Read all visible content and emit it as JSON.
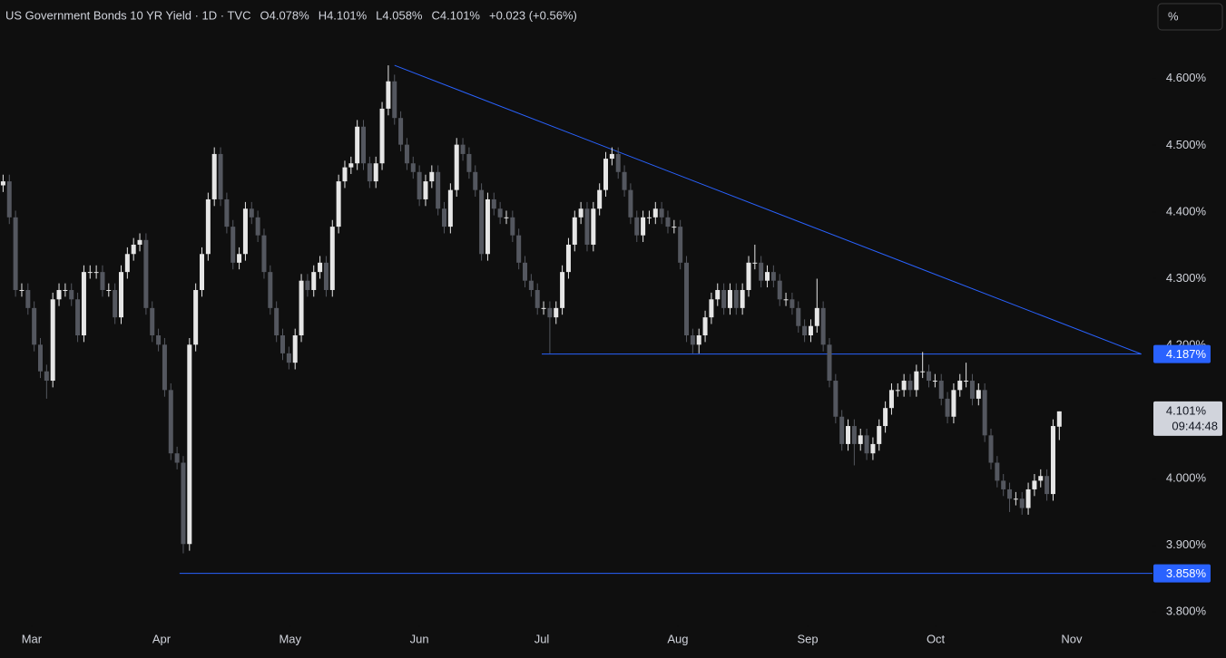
{
  "chart_data": {
    "type": "candlestick",
    "title": "US Government Bonds 10 YR Yield · 1D · TVC",
    "header_values": [
      "O4.078%",
      "H4.101%",
      "L4.058%",
      "C4.101%",
      "+0.023 (+0.56%)"
    ],
    "unit_button": "%",
    "up_color": "#e6e6e6",
    "down_color": "#54575f",
    "drawing_color": "#2962ff",
    "background": "#0f0f0f",
    "open": [
      4.44,
      4.446,
      4.392,
      4.283,
      4.283,
      4.256,
      4.201,
      4.161,
      4.147,
      4.269,
      4.283,
      4.283,
      4.269,
      4.215,
      4.31,
      4.31,
      4.31,
      4.283,
      4.283,
      4.242,
      4.31,
      4.337,
      4.351,
      4.358,
      4.256,
      4.215,
      4.201,
      4.133,
      4.038,
      4.024,
      3.902,
      4.201,
      4.283,
      4.337,
      4.419,
      4.487,
      4.419,
      4.378,
      4.324,
      4.337,
      4.405,
      4.392,
      4.365,
      4.31,
      4.256,
      4.215,
      4.188,
      4.174,
      4.215,
      4.297,
      4.283,
      4.31,
      4.324,
      4.283,
      4.378,
      4.446,
      4.467,
      4.473,
      4.528,
      4.473,
      4.446,
      4.473,
      4.555,
      4.596,
      4.541,
      4.501,
      4.473,
      4.46,
      4.419,
      4.446,
      4.46,
      4.405,
      4.378,
      4.433,
      4.501,
      4.487,
      4.46,
      4.433,
      4.337,
      4.419,
      4.405,
      4.392,
      4.392,
      4.365,
      4.324,
      4.297,
      4.283,
      4.256,
      4.256,
      4.242,
      4.256,
      4.31,
      4.351,
      4.392,
      4.405,
      4.351,
      4.405,
      4.433,
      4.48,
      4.487,
      4.46,
      4.433,
      4.392,
      4.365,
      4.392,
      4.392,
      4.405,
      4.392,
      4.378,
      4.378,
      4.324,
      4.215,
      4.201,
      4.215,
      4.242,
      4.269,
      4.283,
      4.256,
      4.283,
      4.256,
      4.283,
      4.324,
      4.324,
      4.297,
      4.31,
      4.297,
      4.269,
      4.269,
      4.256,
      4.229,
      4.215,
      4.229,
      4.256,
      4.201,
      4.147,
      4.093,
      4.052,
      4.079,
      4.052,
      4.065,
      4.038,
      4.052,
      4.079,
      4.106,
      4.133,
      4.133,
      4.147,
      4.133,
      4.161,
      4.161,
      4.147,
      4.147,
      4.12,
      4.093,
      4.133,
      4.147,
      4.147,
      4.12,
      4.133,
      4.065,
      4.024,
      3.997,
      3.984,
      3.97,
      3.97,
      3.956,
      3.984,
      3.997,
      4.004,
      3.977,
      4.078
    ],
    "high": [
      4.456,
      4.456,
      4.402,
      4.293,
      4.293,
      4.266,
      4.211,
      4.171,
      4.279,
      4.293,
      4.293,
      4.293,
      4.279,
      4.32,
      4.32,
      4.32,
      4.32,
      4.293,
      4.293,
      4.32,
      4.347,
      4.361,
      4.368,
      4.368,
      4.266,
      4.225,
      4.211,
      4.143,
      4.048,
      4.034,
      4.211,
      4.293,
      4.347,
      4.429,
      4.497,
      4.497,
      4.429,
      4.388,
      4.347,
      4.415,
      4.415,
      4.402,
      4.375,
      4.32,
      4.266,
      4.225,
      4.198,
      4.225,
      4.307,
      4.307,
      4.32,
      4.334,
      4.334,
      4.388,
      4.456,
      4.477,
      4.483,
      4.538,
      4.538,
      4.483,
      4.483,
      4.565,
      4.62,
      4.606,
      4.551,
      4.511,
      4.483,
      4.47,
      4.456,
      4.47,
      4.47,
      4.415,
      4.443,
      4.511,
      4.511,
      4.497,
      4.47,
      4.443,
      4.429,
      4.429,
      4.415,
      4.402,
      4.402,
      4.375,
      4.334,
      4.307,
      4.293,
      4.266,
      4.266,
      4.266,
      4.32,
      4.361,
      4.402,
      4.415,
      4.415,
      4.415,
      4.443,
      4.49,
      4.497,
      4.497,
      4.47,
      4.443,
      4.402,
      4.402,
      4.402,
      4.415,
      4.415,
      4.402,
      4.388,
      4.388,
      4.334,
      4.225,
      4.225,
      4.252,
      4.279,
      4.293,
      4.293,
      4.293,
      4.293,
      4.293,
      4.334,
      4.351,
      4.334,
      4.32,
      4.32,
      4.307,
      4.279,
      4.279,
      4.266,
      4.239,
      4.239,
      4.3,
      4.266,
      4.211,
      4.157,
      4.103,
      4.089,
      4.089,
      4.075,
      4.075,
      4.062,
      4.089,
      4.116,
      4.143,
      4.143,
      4.157,
      4.157,
      4.171,
      4.19,
      4.171,
      4.157,
      4.157,
      4.13,
      4.143,
      4.157,
      4.174,
      4.157,
      4.143,
      4.143,
      4.075,
      4.034,
      4.007,
      3.994,
      3.98,
      3.98,
      3.994,
      4.007,
      4.014,
      4.014,
      4.089,
      4.101
    ],
    "low": [
      4.43,
      4.382,
      4.273,
      4.273,
      4.246,
      4.191,
      4.151,
      4.12,
      4.137,
      4.259,
      4.273,
      4.259,
      4.205,
      4.205,
      4.3,
      4.3,
      4.273,
      4.273,
      4.232,
      4.232,
      4.3,
      4.327,
      4.341,
      4.246,
      4.205,
      4.191,
      4.123,
      4.028,
      4.014,
      3.888,
      3.892,
      4.191,
      4.273,
      4.327,
      4.409,
      4.409,
      4.368,
      4.314,
      4.314,
      4.327,
      4.382,
      4.355,
      4.3,
      4.246,
      4.205,
      4.178,
      4.164,
      4.164,
      4.205,
      4.273,
      4.273,
      4.3,
      4.273,
      4.273,
      4.368,
      4.436,
      4.457,
      4.463,
      4.463,
      4.436,
      4.436,
      4.463,
      4.545,
      4.531,
      4.491,
      4.463,
      4.45,
      4.409,
      4.409,
      4.436,
      4.395,
      4.368,
      4.368,
      4.423,
      4.477,
      4.45,
      4.423,
      4.327,
      4.327,
      4.395,
      4.382,
      4.382,
      4.355,
      4.314,
      4.287,
      4.273,
      4.246,
      4.246,
      4.188,
      4.232,
      4.246,
      4.3,
      4.341,
      4.382,
      4.341,
      4.341,
      4.395,
      4.423,
      4.47,
      4.45,
      4.423,
      4.382,
      4.355,
      4.355,
      4.382,
      4.382,
      4.382,
      4.368,
      4.368,
      4.314,
      4.205,
      4.188,
      4.188,
      4.205,
      4.232,
      4.259,
      4.246,
      4.246,
      4.246,
      4.246,
      4.273,
      4.314,
      4.287,
      4.287,
      4.287,
      4.259,
      4.259,
      4.246,
      4.219,
      4.205,
      4.205,
      4.219,
      4.191,
      4.137,
      4.083,
      4.042,
      4.042,
      4.02,
      4.042,
      4.028,
      4.028,
      4.042,
      4.069,
      4.096,
      4.123,
      4.123,
      4.123,
      4.123,
      4.151,
      4.137,
      4.137,
      4.11,
      4.083,
      4.083,
      4.123,
      4.137,
      4.11,
      4.11,
      4.055,
      4.014,
      3.987,
      3.974,
      3.95,
      3.96,
      3.946,
      3.946,
      3.974,
      3.987,
      3.967,
      3.967,
      4.058
    ],
    "close": [
      4.446,
      4.392,
      4.283,
      4.283,
      4.256,
      4.201,
      4.161,
      4.147,
      4.269,
      4.283,
      4.283,
      4.269,
      4.215,
      4.31,
      4.31,
      4.31,
      4.283,
      4.283,
      4.242,
      4.31,
      4.337,
      4.351,
      4.358,
      4.256,
      4.215,
      4.201,
      4.133,
      4.038,
      4.024,
      3.902,
      4.201,
      4.283,
      4.337,
      4.419,
      4.487,
      4.419,
      4.378,
      4.324,
      4.337,
      4.405,
      4.392,
      4.365,
      4.31,
      4.256,
      4.215,
      4.188,
      4.174,
      4.215,
      4.297,
      4.283,
      4.31,
      4.324,
      4.283,
      4.378,
      4.446,
      4.467,
      4.473,
      4.528,
      4.473,
      4.446,
      4.473,
      4.555,
      4.596,
      4.541,
      4.501,
      4.473,
      4.46,
      4.419,
      4.446,
      4.46,
      4.405,
      4.378,
      4.433,
      4.501,
      4.487,
      4.46,
      4.433,
      4.337,
      4.419,
      4.405,
      4.392,
      4.392,
      4.365,
      4.324,
      4.297,
      4.283,
      4.256,
      4.256,
      4.242,
      4.256,
      4.31,
      4.351,
      4.392,
      4.405,
      4.351,
      4.405,
      4.433,
      4.48,
      4.487,
      4.46,
      4.433,
      4.392,
      4.365,
      4.392,
      4.392,
      4.405,
      4.392,
      4.378,
      4.378,
      4.324,
      4.215,
      4.201,
      4.215,
      4.242,
      4.269,
      4.283,
      4.256,
      4.283,
      4.256,
      4.283,
      4.324,
      4.324,
      4.297,
      4.31,
      4.297,
      4.269,
      4.269,
      4.256,
      4.229,
      4.215,
      4.229,
      4.256,
      4.201,
      4.147,
      4.093,
      4.052,
      4.079,
      4.052,
      4.065,
      4.038,
      4.052,
      4.079,
      4.106,
      4.133,
      4.133,
      4.147,
      4.133,
      4.161,
      4.161,
      4.147,
      4.147,
      4.12,
      4.093,
      4.133,
      4.147,
      4.147,
      4.12,
      4.133,
      4.065,
      4.024,
      3.997,
      3.984,
      3.97,
      3.97,
      3.956,
      3.984,
      3.997,
      4.004,
      3.977,
      4.079,
      4.101
    ],
    "xlim": [
      -0.5,
      185
    ],
    "xticks": [
      {
        "value": 4.6,
        "label": "Mar"
      },
      {
        "value": 25.5,
        "label": "Apr"
      },
      {
        "value": 46.2,
        "label": "May"
      },
      {
        "value": 67,
        "label": "Jun"
      },
      {
        "value": 86.7,
        "label": "Jul"
      },
      {
        "value": 108.6,
        "label": "Aug"
      },
      {
        "value": 129.5,
        "label": "Sep"
      },
      {
        "value": 150.1,
        "label": "Oct"
      },
      {
        "value": 172,
        "label": "Nov"
      }
    ],
    "ylim": [
      3.78,
      4.718
    ],
    "yticks": [
      {
        "value": 3.8,
        "label": "3.800%"
      },
      {
        "value": 3.9,
        "label": "3.900%"
      },
      {
        "value": 4.0,
        "label": "4.000%"
      },
      {
        "value": 4.1,
        "label": "4.100%"
      },
      {
        "value": 4.2,
        "label": "4.200%"
      },
      {
        "value": 4.3,
        "label": "4.300%"
      },
      {
        "value": 4.4,
        "label": "4.400%"
      },
      {
        "value": 4.5,
        "label": "4.500%"
      },
      {
        "value": 4.6,
        "label": "4.600%"
      }
    ],
    "drawings": [
      {
        "type": "trendline",
        "x": [
          63,
          183.2
        ],
        "y": [
          4.62,
          4.187
        ]
      },
      {
        "type": "horizontal",
        "x": [
          86.7,
          183.2
        ],
        "y": [
          4.187,
          4.187
        ]
      },
      {
        "type": "horizontal",
        "x": [
          28.4,
          185
        ],
        "y": [
          3.858,
          3.858
        ]
      }
    ],
    "price_labels": [
      {
        "value": 4.187,
        "label": "4.187%"
      },
      {
        "value": 3.858,
        "label": "3.858%"
      }
    ],
    "last_price": {
      "value": 4.101,
      "label": "4.101%",
      "countdown": "09:44:48"
    }
  }
}
